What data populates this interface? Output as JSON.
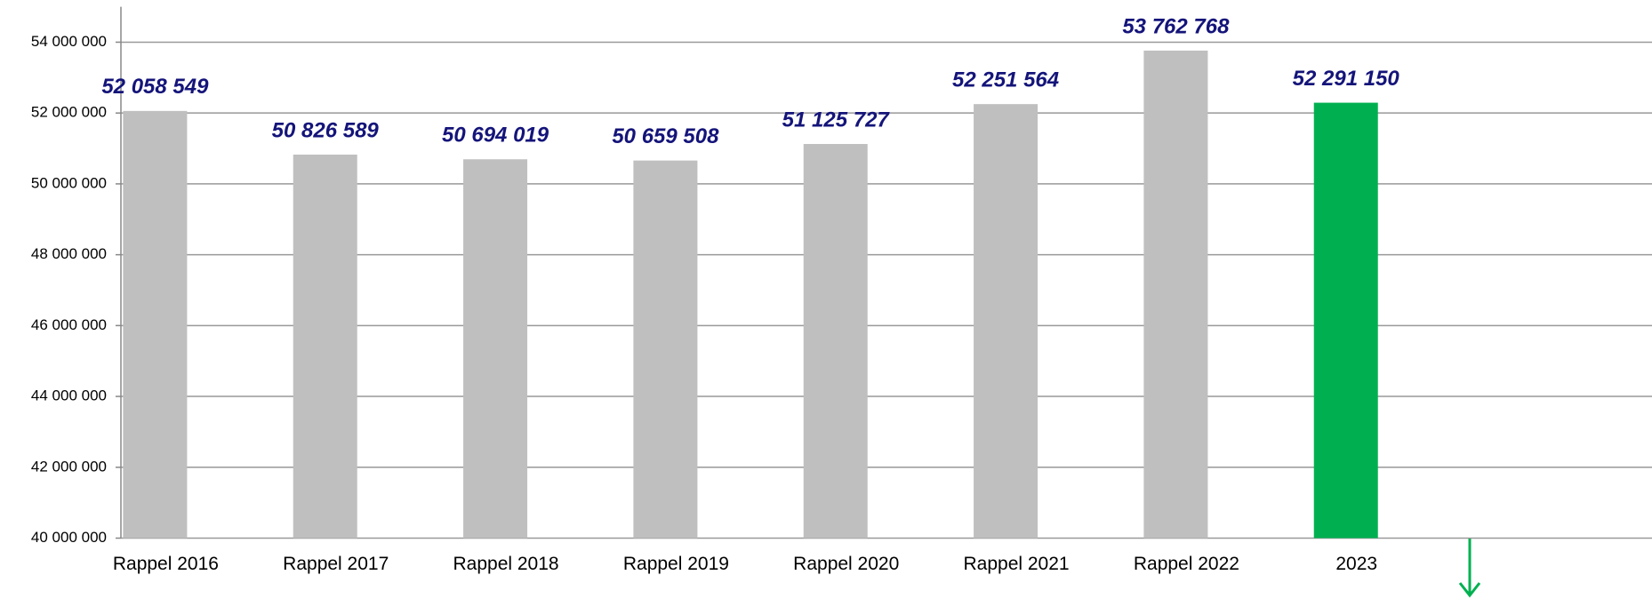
{
  "chart_data": {
    "type": "bar",
    "categories": [
      "Rappel 2016",
      "Rappel 2017",
      "Rappel 2018",
      "Rappel 2019",
      "Rappel 2020",
      "Rappel 2021",
      "Rappel 2022",
      "2023"
    ],
    "values": [
      52058549,
      50826589,
      50694019,
      50659508,
      51125727,
      52251564,
      53762768,
      52291150
    ],
    "value_labels": [
      "52 058 549",
      "50 826 589",
      "50 694 019",
      "50 659 508",
      "51 125 727",
      "52 251 564",
      "53 762 768",
      "52 291 150"
    ],
    "colors": [
      "#bfbfbf",
      "#bfbfbf",
      "#bfbfbf",
      "#bfbfbf",
      "#bfbfbf",
      "#bfbfbf",
      "#bfbfbf",
      "#00b050"
    ],
    "ylim": [
      40000000,
      55000000
    ],
    "yticks": [
      {
        "value": 40000000,
        "label": "40 000 000"
      },
      {
        "value": 42000000,
        "label": "42 000 000"
      },
      {
        "value": 44000000,
        "label": "44 000 000"
      },
      {
        "value": 46000000,
        "label": "46 000 000"
      },
      {
        "value": 48000000,
        "label": "48 000 000"
      },
      {
        "value": 50000000,
        "label": "50 000 000"
      },
      {
        "value": 52000000,
        "label": "52 000 000"
      },
      {
        "value": 54000000,
        "label": "54 000 000"
      }
    ],
    "grid": true
  }
}
